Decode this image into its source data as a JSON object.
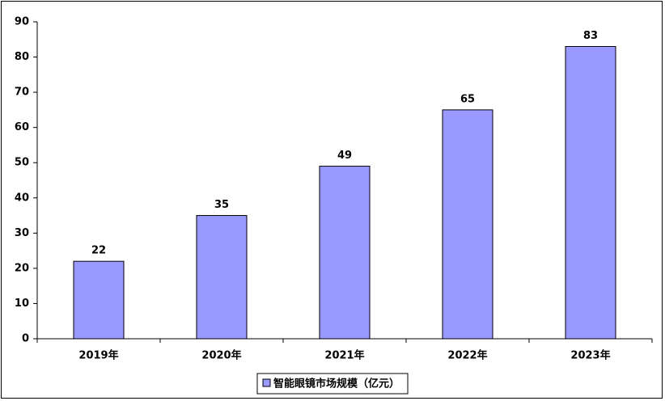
{
  "chart_data": {
    "type": "bar",
    "categories": [
      "2019年",
      "2020年",
      "2021年",
      "2022年",
      "2023年"
    ],
    "series": [
      {
        "name": "智能眼镜市场规模（亿元）",
        "color": "#9999ff",
        "values": [
          22,
          35,
          49,
          65,
          83
        ]
      }
    ],
    "ylim": [
      0,
      90
    ],
    "yticks": [
      0,
      10,
      20,
      30,
      40,
      50,
      60,
      70,
      80,
      90
    ],
    "grid": false,
    "legend": "bottom",
    "data_labels": true
  }
}
